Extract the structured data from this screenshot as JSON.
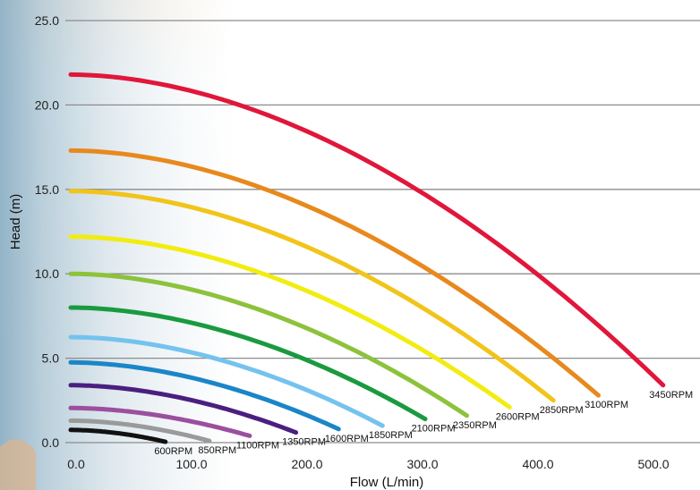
{
  "chart_data": {
    "type": "line",
    "title": "",
    "xlabel": "Flow (L/min)",
    "ylabel": "Head (m)",
    "xlim": [
      0,
      500
    ],
    "ylim": [
      0,
      25
    ],
    "x_ticks": [
      "0.0",
      "100.0",
      "200.0",
      "300.0",
      "400.0",
      "500.0"
    ],
    "y_ticks": [
      "0.0",
      "5.0",
      "10.0",
      "15.0",
      "20.0",
      "25.0"
    ],
    "grid": "horizontal",
    "series": [
      {
        "name": "600RPM",
        "color": "#111111",
        "qmax": 82,
        "h0": 0.75,
        "hend": 0.05
      },
      {
        "name": "850RPM",
        "color": "#9a9a9a",
        "qmax": 120,
        "h0": 1.3,
        "hend": 0.1
      },
      {
        "name": "1100RPM",
        "color": "#9b4f9e",
        "qmax": 155,
        "h0": 2.05,
        "hend": 0.4
      },
      {
        "name": "1350RPM",
        "color": "#4a1f7f",
        "qmax": 195,
        "h0": 3.4,
        "hend": 0.6
      },
      {
        "name": "1600RPM",
        "color": "#1a86c8",
        "qmax": 232,
        "h0": 4.75,
        "hend": 0.8
      },
      {
        "name": "1850RPM",
        "color": "#74c3ee",
        "qmax": 270,
        "h0": 6.25,
        "hend": 1.0
      },
      {
        "name": "2100RPM",
        "color": "#1a9a3f",
        "qmax": 307,
        "h0": 8.0,
        "hend": 1.4
      },
      {
        "name": "2350RPM",
        "color": "#8dc23b",
        "qmax": 343,
        "h0": 10.0,
        "hend": 1.6
      },
      {
        "name": "2600RPM",
        "color": "#f2ec10",
        "qmax": 380,
        "h0": 12.2,
        "hend": 2.1
      },
      {
        "name": "2850RPM",
        "color": "#f2c41a",
        "qmax": 418,
        "h0": 14.9,
        "hend": 2.5
      },
      {
        "name": "3100RPM",
        "color": "#e8891d",
        "qmax": 457,
        "h0": 17.3,
        "hend": 2.8
      },
      {
        "name": "3450RPM",
        "color": "#e0173a",
        "qmax": 513,
        "h0": 21.8,
        "hend": 3.4
      }
    ]
  }
}
